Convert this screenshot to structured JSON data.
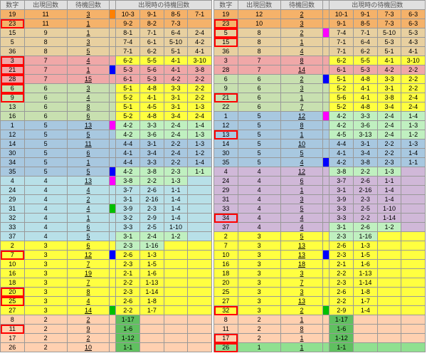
{
  "headers": [
    "数字",
    "出現回数",
    "待機回数",
    "",
    "出現時の待機回数",
    "",
    "",
    ""
  ],
  "hsub_left": [
    "10-1",
    "9-1",
    "8-5",
    "7-1"
  ],
  "hsub_right": [
    "10-1",
    "9-1",
    "8-5",
    "7-3",
    "6-3"
  ],
  "colors": {
    "orange": "#f5b26a",
    "tan": "#e8d0a0",
    "pink": "#f0a8a8",
    "green": "#c8e0b0",
    "blue": "#a8c8e0",
    "purple": "#d0b8d8",
    "cyan": "#b8e0e8",
    "yellow": "#ffff40",
    "lgreen": "#90e090",
    "peach": "#ffd0b0",
    "mint": "#c0f0c0",
    "dgreen": "#60c060"
  },
  "box": {
    "orange": "#ff8000",
    "blue": "#0000ff",
    "magenta": "#ff00ff",
    "green": "#00c000",
    "yellow": "#ffff00",
    "red": "#ff0000",
    "cyan": "#00ffff"
  },
  "left": [
    {
      "bg": "orange",
      "n": 19,
      "c": 11,
      "w": 3,
      "cb": "orange",
      "d": [
        "10-3",
        "9-1",
        "8-5",
        "7-1"
      ]
    },
    {
      "bg": "orange",
      "n": 23,
      "c": 11,
      "w": 1,
      "hl": 1,
      "cb": "",
      "d": [
        "9-2",
        "8-2",
        "7-3",
        ""
      ]
    },
    {
      "bg": "tan",
      "n": 15,
      "c": 9,
      "w": 1,
      "cb": "",
      "d": [
        "8-1",
        "7-1",
        "6-4",
        "2-4"
      ]
    },
    {
      "bg": "tan",
      "n": 5,
      "c": 8,
      "w": 3,
      "cb": "",
      "d": [
        "7-4",
        "6-1",
        "5-10",
        "4-2"
      ]
    },
    {
      "bg": "tan",
      "n": 36,
      "c": 8,
      "w": 5,
      "cb": "",
      "d": [
        "7-1",
        "6-2",
        "5-1",
        "4-1"
      ]
    },
    {
      "bg": "pink",
      "n": 3,
      "c": 7,
      "w": 4,
      "hl": 1,
      "cb": "",
      "d": [
        "6-2",
        "5-5",
        "4-1",
        "3-10",
        "dy"
      ]
    },
    {
      "bg": "pink",
      "n": 21,
      "c": 7,
      "w": 1,
      "hl": 1,
      "cb": "blue",
      "d": [
        "5-3",
        "5-6",
        "4-1",
        "3-8"
      ]
    },
    {
      "bg": "pink",
      "n": 28,
      "c": 7,
      "w": 15,
      "hl": 1,
      "cb": "",
      "d": [
        "6-1",
        "5-3",
        "4-2",
        "2-2"
      ]
    },
    {
      "bg": "green",
      "n": 6,
      "c": 6,
      "w": 3,
      "hl": 1,
      "cb": "",
      "d": [
        "5-1",
        "4-8",
        "3-3",
        "2-2",
        "dy"
      ]
    },
    {
      "bg": "green",
      "n": 9,
      "c": 6,
      "w": 4,
      "hl": 1,
      "cb": "",
      "d": [
        "5-2",
        "4-1",
        "3-1",
        "2-2",
        "dy"
      ]
    },
    {
      "bg": "green",
      "n": 13,
      "c": 6,
      "w": 8,
      "cb": "",
      "d": [
        "5-1",
        "4-5",
        "3-1",
        "1-3",
        "dy"
      ]
    },
    {
      "bg": "green",
      "n": 16,
      "c": 6,
      "w": 6,
      "cb": "",
      "d": [
        "5-2",
        "4-8",
        "3-4",
        "2-4",
        "dy"
      ]
    },
    {
      "bg": "blue",
      "n": 1,
      "c": 5,
      "w": 13,
      "cb": "magenta",
      "d": [
        "4-2",
        "3-3",
        "2-4",
        "1-4",
        "dg"
      ]
    },
    {
      "bg": "blue",
      "n": 12,
      "c": 5,
      "w": 5,
      "cb": "",
      "d": [
        "4-2",
        "3-6",
        "2-4",
        "1-3",
        "dg"
      ]
    },
    {
      "bg": "blue",
      "n": 14,
      "c": 5,
      "w": 11,
      "cb": "",
      "d": [
        "4-4",
        "3-1",
        "2-2",
        "1-3"
      ]
    },
    {
      "bg": "blue",
      "n": 30,
      "c": 5,
      "w": 6,
      "cb": "",
      "d": [
        "4-1",
        "3-4",
        "2-4",
        "1-2"
      ]
    },
    {
      "bg": "blue",
      "n": 34,
      "c": 5,
      "w": 1,
      "cb": "",
      "d": [
        "4-4",
        "3-3",
        "2-2",
        "1-4"
      ]
    },
    {
      "bg": "blue",
      "n": 35,
      "c": 5,
      "w": 5,
      "cb": "blue",
      "d": [
        "4-2",
        "3-8",
        "2-3",
        "1-1",
        "dg"
      ]
    },
    {
      "bg": "cyan",
      "n": 4,
      "c": 4,
      "w": 13,
      "cb": "magenta",
      "d": [
        "3-8",
        "2-2",
        "1-3",
        "",
        "dg"
      ]
    },
    {
      "bg": "cyan",
      "n": 24,
      "c": 4,
      "w": 4,
      "cb": "",
      "d": [
        "3-7",
        "2-6",
        "1-1",
        ""
      ]
    },
    {
      "bg": "cyan",
      "n": 29,
      "c": 4,
      "w": 2,
      "cb": "",
      "d": [
        "3-1",
        "2-16",
        "1-4",
        ""
      ]
    },
    {
      "bg": "cyan",
      "n": 31,
      "c": 4,
      "w": 4,
      "cb": "green",
      "d": [
        "3-9",
        "2-3",
        "1-4",
        ""
      ]
    },
    {
      "bg": "cyan",
      "n": 32,
      "c": 4,
      "w": 1,
      "cb": "",
      "d": [
        "3-2",
        "2-9",
        "1-4",
        ""
      ]
    },
    {
      "bg": "cyan",
      "n": 33,
      "c": 4,
      "w": 6,
      "cb": "",
      "d": [
        "3-3",
        "2-5",
        "1-10",
        ""
      ]
    },
    {
      "bg": "cyan",
      "n": 37,
      "c": 4,
      "w": 5,
      "cb": "",
      "d": [
        "3-1",
        "2-4",
        "1-2",
        "",
        "dg"
      ]
    },
    {
      "bg": "yellow",
      "n": 2,
      "c": 3,
      "w": 6,
      "cb": "",
      "d": [
        "2-3",
        "1-16",
        "",
        "",
        "dg"
      ]
    },
    {
      "bg": "yellow",
      "n": 7,
      "c": 3,
      "w": 12,
      "hl": 1,
      "cb": "blue",
      "d": [
        "2-6",
        "1-3",
        "",
        ""
      ]
    },
    {
      "bg": "yellow",
      "n": 10,
      "c": 3,
      "w": 7,
      "cb": "",
      "d": [
        "2-3",
        "1-5",
        "",
        ""
      ]
    },
    {
      "bg": "yellow",
      "n": 16,
      "c": 3,
      "w": 19,
      "cb": "",
      "d": [
        "2-1",
        "1-6",
        "",
        ""
      ]
    },
    {
      "bg": "yellow",
      "n": 18,
      "c": 3,
      "w": 7,
      "cb": "",
      "d": [
        "2-2",
        "1-13",
        "",
        ""
      ]
    },
    {
      "bg": "yellow",
      "n": 20,
      "c": 3,
      "w": 8,
      "hl": 1,
      "cb": "",
      "d": [
        "2-3",
        "1-14",
        "",
        ""
      ]
    },
    {
      "bg": "yellow",
      "n": 25,
      "c": 3,
      "w": 4,
      "hl": 1,
      "cb": "",
      "d": [
        "2-6",
        "1-8",
        "",
        ""
      ]
    },
    {
      "bg": "yellow",
      "n": 27,
      "c": 3,
      "w": 14,
      "cb": "green",
      "d": [
        "2-2",
        "1-7",
        "",
        ""
      ]
    },
    {
      "bg": "peach",
      "n": 8,
      "c": 2,
      "w": 2,
      "cb": "",
      "d": [
        "1-17",
        "",
        "",
        "",
        "dgr"
      ]
    },
    {
      "bg": "peach",
      "n": 11,
      "c": 2,
      "w": 9,
      "hl": 1,
      "cb": "",
      "d": [
        "1-6",
        "",
        "",
        "",
        "dgr"
      ]
    },
    {
      "bg": "peach",
      "n": 17,
      "c": 2,
      "w": 2,
      "cb": "",
      "d": [
        "1-12",
        "",
        "",
        "",
        "dgr"
      ]
    },
    {
      "bg": "peach",
      "n": 26,
      "c": 2,
      "w": 10,
      "cb": "",
      "d": [
        "1-1",
        "",
        "",
        "",
        "dgr"
      ]
    }
  ],
  "right": [
    {
      "bg": "orange",
      "n": 19,
      "c": 12,
      "w": 2,
      "cb": "",
      "d": [
        "10-1",
        "9-1",
        "7-3",
        "6-3"
      ]
    },
    {
      "bg": "orange",
      "n": 23,
      "c": 10,
      "w": 3,
      "hl": 1,
      "cb": "",
      "d": [
        "9-1",
        "8-5",
        "7-3",
        "6-3"
      ]
    },
    {
      "bg": "tan",
      "n": 5,
      "c": 8,
      "w": 2,
      "hl": 1,
      "cb": "magenta",
      "d": [
        "7-4",
        "7-1",
        "5-10",
        "5-3"
      ]
    },
    {
      "bg": "tan",
      "n": 15,
      "c": 8,
      "w": 1,
      "hl": 1,
      "cb": "",
      "d": [
        "7-1",
        "6-4",
        "5-3",
        "4-3"
      ]
    },
    {
      "bg": "tan",
      "n": 36,
      "c": 8,
      "w": 4,
      "cb": "",
      "d": [
        "7-1",
        "6-2",
        "5-1",
        "4-1"
      ]
    },
    {
      "bg": "pink",
      "n": 3,
      "c": 7,
      "w": 8,
      "cb": "",
      "d": [
        "6-2",
        "5-5",
        "4-1",
        "3-10",
        "dy"
      ]
    },
    {
      "bg": "pink",
      "n": 28,
      "c": 7,
      "w": 14,
      "cb": "",
      "d": [
        "6-1",
        "5-3",
        "4-2",
        "2-2"
      ]
    },
    {
      "bg": "green",
      "n": 6,
      "c": 6,
      "w": 2,
      "cb": "blue",
      "d": [
        "5-1",
        "4-8",
        "3-3",
        "2-2",
        "dy"
      ]
    },
    {
      "bg": "green",
      "n": 9,
      "c": 6,
      "w": 3,
      "cb": "",
      "d": [
        "5-2",
        "4-1",
        "3-1",
        "2-2",
        "dy"
      ]
    },
    {
      "bg": "green",
      "n": 21,
      "c": 6,
      "w": 1,
      "hl": 1,
      "cb": "",
      "d": [
        "5-6",
        "4-1",
        "3-8",
        "2-4",
        "dy"
      ]
    },
    {
      "bg": "green",
      "n": 22,
      "c": 6,
      "w": 7,
      "cb": "",
      "d": [
        "5-2",
        "4-8",
        "3-4",
        "2-4",
        "dy"
      ]
    },
    {
      "bg": "blue",
      "n": 1,
      "c": 5,
      "w": 12,
      "cb": "magenta",
      "d": [
        "4-2",
        "3-3",
        "2-4",
        "1-4",
        "dg"
      ]
    },
    {
      "bg": "blue",
      "n": 12,
      "c": 5,
      "w": 8,
      "cb": "",
      "d": [
        "4-2",
        "3-6",
        "2-4",
        "1-3",
        "dg"
      ]
    },
    {
      "bg": "blue",
      "n": 13,
      "c": 5,
      "w": 1,
      "hl": 1,
      "cb": "",
      "d": [
        "4-5",
        "3-13",
        "2-4",
        "1-2",
        "dg"
      ]
    },
    {
      "bg": "blue",
      "n": 14,
      "c": 5,
      "w": 10,
      "cb": "",
      "d": [
        "4-4",
        "3-1",
        "2-2",
        "1-3"
      ]
    },
    {
      "bg": "blue",
      "n": 30,
      "c": 5,
      "w": 5,
      "cb": "",
      "d": [
        "4-1",
        "3-4",
        "2-2",
        "1-4"
      ]
    },
    {
      "bg": "blue",
      "n": 35,
      "c": 5,
      "w": 4,
      "cb": "blue",
      "d": [
        "4-2",
        "3-8",
        "2-3",
        "1-1"
      ]
    },
    {
      "bg": "purple",
      "n": 4,
      "c": 4,
      "w": 12,
      "cb": "",
      "d": [
        "3-8",
        "2-2",
        "1-3",
        "",
        "dg"
      ]
    },
    {
      "bg": "purple",
      "n": 24,
      "c": 4,
      "w": 6,
      "cb": "",
      "d": [
        "3-7",
        "2-6",
        "1-1",
        ""
      ]
    },
    {
      "bg": "purple",
      "n": 29,
      "c": 4,
      "w": 1,
      "cb": "",
      "d": [
        "3-1",
        "2-16",
        "1-4",
        ""
      ]
    },
    {
      "bg": "purple",
      "n": 31,
      "c": 4,
      "w": 3,
      "cb": "",
      "d": [
        "3-9",
        "2-3",
        "1-4",
        ""
      ]
    },
    {
      "bg": "purple",
      "n": 33,
      "c": 4,
      "w": 5,
      "cb": "",
      "d": [
        "3-3",
        "2-5",
        "1-10",
        ""
      ]
    },
    {
      "bg": "purple",
      "n": 34,
      "c": 4,
      "w": 4,
      "hl": 1,
      "cb": "",
      "d": [
        "3-3",
        "2-2",
        "1-14",
        ""
      ]
    },
    {
      "bg": "purple",
      "n": 37,
      "c": 4,
      "w": 4,
      "cb": "",
      "d": [
        "3-1",
        "2-6",
        "1-2",
        "",
        "dg"
      ]
    },
    {
      "bg": "yellow",
      "n": 2,
      "c": 3,
      "w": 5,
      "cb": "",
      "d": [
        "2-3",
        "1-16",
        "",
        "",
        "dg"
      ]
    },
    {
      "bg": "yellow",
      "n": 7,
      "c": 3,
      "w": 13,
      "cb": "",
      "d": [
        "2-6",
        "1-3",
        "",
        ""
      ]
    },
    {
      "bg": "yellow",
      "n": 10,
      "c": 3,
      "w": 13,
      "cb": "blue",
      "d": [
        "2-3",
        "1-5",
        "",
        ""
      ]
    },
    {
      "bg": "yellow",
      "n": 16,
      "c": 3,
      "w": 18,
      "cb": "",
      "d": [
        "2-1",
        "1-6",
        "",
        ""
      ]
    },
    {
      "bg": "yellow",
      "n": 18,
      "c": 3,
      "w": 3,
      "cb": "",
      "d": [
        "2-2",
        "1-13",
        "",
        ""
      ]
    },
    {
      "bg": "yellow",
      "n": 20,
      "c": 3,
      "w": 7,
      "cb": "",
      "d": [
        "2-3",
        "1-14",
        "",
        ""
      ]
    },
    {
      "bg": "yellow",
      "n": 25,
      "c": 3,
      "w": 3,
      "cb": "",
      "d": [
        "2-6",
        "1-8",
        "",
        ""
      ]
    },
    {
      "bg": "yellow",
      "n": 27,
      "c": 3,
      "w": 13,
      "cb": "",
      "d": [
        "2-2",
        "1-7",
        "",
        ""
      ]
    },
    {
      "bg": "yellow",
      "n": 32,
      "c": 3,
      "w": 2,
      "hl": 1,
      "cb": "green",
      "d": [
        "2-9",
        "1-4",
        "",
        ""
      ]
    },
    {
      "bg": "peach",
      "n": 8,
      "c": 2,
      "w": 1,
      "cb": "",
      "d": [
        "1-17",
        "",
        "",
        "",
        "dgr"
      ]
    },
    {
      "bg": "peach",
      "n": 11,
      "c": 2,
      "w": 8,
      "cb": "",
      "d": [
        "1-6",
        "",
        "",
        "",
        "dgr"
      ]
    },
    {
      "bg": "peach",
      "n": 17,
      "c": 2,
      "w": 1,
      "hl": 1,
      "cb": "",
      "d": [
        "1-12",
        "",
        "",
        "",
        "dgr"
      ]
    },
    {
      "bg": "lgreen",
      "n": 26,
      "c": 1,
      "w": 1,
      "hl": 1,
      "cb": "",
      "d": [
        "1-1",
        "",
        "",
        "",
        "dgr"
      ]
    }
  ]
}
